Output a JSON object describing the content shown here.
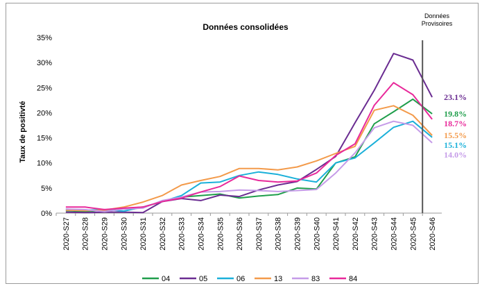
{
  "chart_data": {
    "type": "line",
    "title": "Données consolidées",
    "annotation": [
      "Données",
      "Provisoires"
    ],
    "xlabel": "",
    "ylabel": "Taux de positivté",
    "ylim": [
      0,
      35
    ],
    "yticks": [
      "0%",
      "5%",
      "10%",
      "15%",
      "20%",
      "25%",
      "30%",
      "35%"
    ],
    "grid": false,
    "legend_position": "bottom",
    "categories": [
      "2020-S27",
      "2020-S28",
      "2020-S29",
      "2020-S30",
      "2020-S31",
      "2020-S32",
      "2020-S33",
      "2020-S34",
      "2020-S35",
      "2020-S36",
      "2020-S37",
      "2020-S38",
      "2020-S39",
      "2020-S40",
      "2020-S41",
      "2020-S42",
      "2020-S43",
      "2020-S44",
      "2020-S45",
      "2020-S46"
    ],
    "provisional_from": "2020-S46",
    "series": [
      {
        "name": "04",
        "color": "#1f9e4b",
        "end_label": "19.8%",
        "values": [
          0.5,
          0.3,
          0.6,
          0.9,
          1.2,
          2.3,
          3.2,
          3.5,
          3.8,
          3.0,
          3.4,
          3.7,
          5.0,
          4.8,
          10.0,
          11.2,
          17.8,
          20.2,
          22.7,
          19.8
        ]
      },
      {
        "name": "05",
        "color": "#6a2c91",
        "end_label": "23.1%",
        "values": [
          0.2,
          0.1,
          0.2,
          0.2,
          0.1,
          2.3,
          2.9,
          2.5,
          3.6,
          3.3,
          4.6,
          5.6,
          6.3,
          8.7,
          11.3,
          18.0,
          24.5,
          31.8,
          30.5,
          23.1
        ]
      },
      {
        "name": "06",
        "color": "#1ab0d9",
        "end_label": "15.1%",
        "values": [
          0.8,
          0.6,
          0.7,
          0.4,
          1.2,
          2.3,
          3.5,
          6.0,
          6.2,
          7.5,
          8.2,
          7.7,
          6.8,
          6.2,
          10.0,
          11.0,
          14.0,
          17.1,
          18.3,
          15.1
        ]
      },
      {
        "name": "13",
        "color": "#f39a4a",
        "end_label": "15.5%",
        "values": [
          0.6,
          0.5,
          0.6,
          1.2,
          2.2,
          3.5,
          5.6,
          6.5,
          7.3,
          8.9,
          8.9,
          8.6,
          9.2,
          10.4,
          11.9,
          13.3,
          20.5,
          21.4,
          19.5,
          15.5
        ]
      },
      {
        "name": "83",
        "color": "#c59be8",
        "end_label": "14.0%",
        "values": [
          0.8,
          0.7,
          0.3,
          0.8,
          1.0,
          2.5,
          3.2,
          4.2,
          4.3,
          4.6,
          4.5,
          4.3,
          4.5,
          4.7,
          8.0,
          12.0,
          17.0,
          18.3,
          17.5,
          14.0
        ]
      },
      {
        "name": "84",
        "color": "#e8299a",
        "end_label": "18.7%",
        "values": [
          1.2,
          1.2,
          0.7,
          1.0,
          1.2,
          2.3,
          3.0,
          4.2,
          5.3,
          7.4,
          6.5,
          6.2,
          6.4,
          8.0,
          11.5,
          13.8,
          21.5,
          26.0,
          23.6,
          18.7
        ]
      }
    ]
  }
}
